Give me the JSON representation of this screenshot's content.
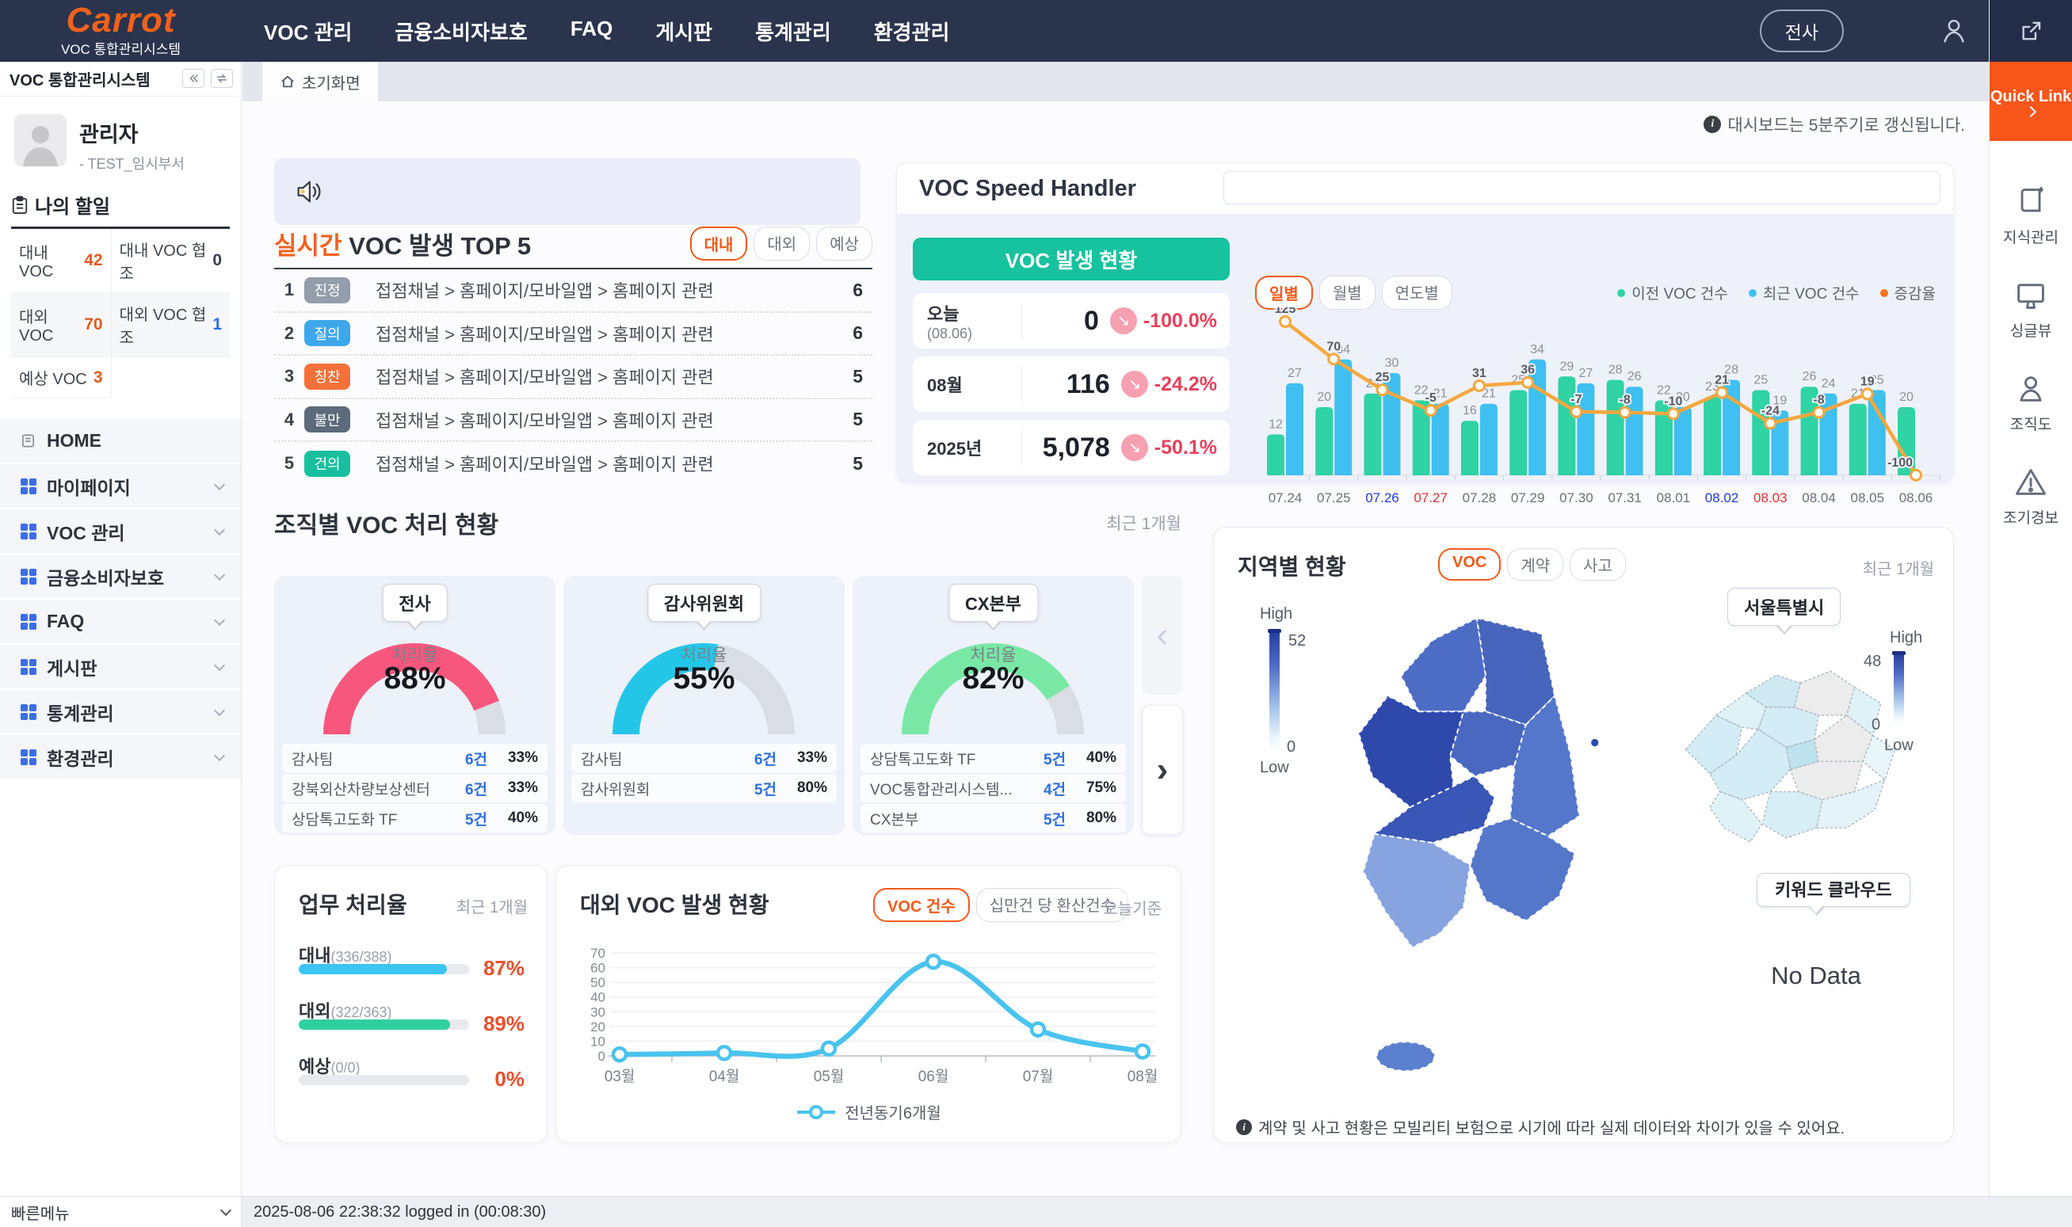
{
  "navbar": {
    "logo": "Carrot",
    "logo_sub": "VOC 통합관리시스템",
    "menu": [
      "VOC 관리",
      "금융소비자보호",
      "FAQ",
      "게시판",
      "통계관리",
      "환경관리"
    ],
    "scope_button": "전사"
  },
  "rail": {
    "quick_link": "Quick Link",
    "items": [
      {
        "label": "지식관리",
        "icon": "book-icon"
      },
      {
        "label": "싱글뷰",
        "icon": "monitor-icon"
      },
      {
        "label": "조직도",
        "icon": "org-person-icon"
      },
      {
        "label": "조기경보",
        "icon": "alert-triangle-icon"
      }
    ]
  },
  "sidebar": {
    "title": "VOC 통합관리시스템",
    "user": {
      "name": "관리자",
      "dept": "- TEST_임시부서"
    },
    "todo": {
      "title": "나의 할일",
      "items": [
        {
          "label": "대내 VOC",
          "value": "42",
          "color": "#e25b22"
        },
        {
          "label": "대내 VOC 협조",
          "value": "0",
          "color": "#374151"
        },
        {
          "label": "대외 VOC",
          "value": "70",
          "color": "#e25b22"
        },
        {
          "label": "대외 VOC 협조",
          "value": "1",
          "color": "#2d6fdd"
        },
        {
          "label": "예상 VOC",
          "value": "3",
          "color": "#e25b22"
        }
      ]
    },
    "home_label": "HOME",
    "menu": [
      "마이페이지",
      "VOC 관리",
      "금융소비자보호",
      "FAQ",
      "게시판",
      "통계관리",
      "환경관리"
    ]
  },
  "main": {
    "tab": "초기화면",
    "refresh_note": "대시보드는 5분주기로 갱신됩니다.",
    "top5": {
      "title_highlight": "실시간",
      "title_rest": " VOC 발생 TOP 5",
      "filters": [
        {
          "label": "대내",
          "active": true
        },
        {
          "label": "대외",
          "active": false
        },
        {
          "label": "예상",
          "active": false
        }
      ],
      "rows": [
        {
          "rank": "1",
          "badge": "진정",
          "badge_color": "#939dab",
          "text": "접점채널 > 홈페이지/모바일앱 > 홈페이지 관련",
          "count": "6"
        },
        {
          "rank": "2",
          "badge": "질의",
          "badge_color": "#3ea7ea",
          "text": "접점채널 > 홈페이지/모바일앱 > 홈페이지 관련",
          "count": "6"
        },
        {
          "rank": "3",
          "badge": "칭찬",
          "badge_color": "#f4713a",
          "text": "접점채널 > 홈페이지/모바일앱 > 홈페이지 관련",
          "count": "5"
        },
        {
          "rank": "4",
          "badge": "불만",
          "badge_color": "#5b6b7b",
          "text": "접점채널 > 홈페이지/모바일앱 > 홈페이지 관련",
          "count": "5"
        },
        {
          "rank": "5",
          "badge": "건의",
          "badge_color": "#17bf9e",
          "text": "접점채널 > 홈페이지/모바일앱 > 홈페이지 관련",
          "count": "5"
        }
      ]
    },
    "speed": {
      "title": "VOC Speed Handler",
      "status_button": "VOC 발생 현황",
      "stats": [
        {
          "label": "오늘",
          "sublabel": "(08.06)",
          "value": "0",
          "delta": "-100.0%"
        },
        {
          "label": "08월",
          "sublabel": "",
          "value": "116",
          "delta": "-24.2%"
        },
        {
          "label": "2025년",
          "sublabel": "",
          "value": "5,078",
          "delta": "-50.1%"
        }
      ],
      "period_buttons": [
        {
          "label": "일별",
          "active": true
        },
        {
          "label": "월별",
          "active": false
        },
        {
          "label": "연도별",
          "active": false
        }
      ],
      "legend": [
        {
          "label": "이전 VOC 건수",
          "color": "#2fd3a4"
        },
        {
          "label": "최근 VOC 건수",
          "color": "#3fc0f0"
        },
        {
          "label": "증감율",
          "color": "#f4731c"
        }
      ]
    },
    "org": {
      "title": "조직별 VOC 처리 현황",
      "period": "최근 1개월",
      "gauge_label": "처리율",
      "cards": [
        {
          "name": "전사",
          "rate": 88,
          "rate_label": "88%",
          "color": "#f8577d",
          "rows": [
            {
              "name": "감사팀",
              "count": "6건",
              "pct": "33%"
            },
            {
              "name": "강북외산차량보상센터",
              "count": "6건",
              "pct": "33%"
            },
            {
              "name": "상담톡고도화 TF",
              "count": "5건",
              "pct": "40%"
            }
          ]
        },
        {
          "name": "감사위원회",
          "rate": 55,
          "rate_label": "55%",
          "color": "#24c6e8",
          "rows": [
            {
              "name": "감사팀",
              "count": "6건",
              "pct": "33%"
            },
            {
              "name": "감사위원회",
              "count": "5건",
              "pct": "80%"
            }
          ]
        },
        {
          "name": "CX본부",
          "rate": 82,
          "rate_label": "82%",
          "color": "#79e8a5",
          "rows": [
            {
              "name": "상담톡고도화 TF",
              "count": "5건",
              "pct": "40%"
            },
            {
              "name": "VOC통합관리시스템...",
              "count": "4건",
              "pct": "75%"
            },
            {
              "name": "CX본부",
              "count": "5건",
              "pct": "80%"
            }
          ]
        }
      ]
    },
    "work": {
      "title": "업무 처리율",
      "period": "최근 1개월",
      "bars": [
        {
          "label": "대내",
          "detail": "(336/388)",
          "pct": 87,
          "pct_label": "87%",
          "color": "#3cc4f2"
        },
        {
          "label": "대외",
          "detail": "(322/363)",
          "pct": 89,
          "pct_label": "89%",
          "color": "#2fd0a0"
        },
        {
          "label": "예상",
          "detail": "(0/0)",
          "pct": 0,
          "pct_label": "0%",
          "color": "#3cc4f2"
        }
      ]
    },
    "trend": {
      "title": "대외 VOC 발생 현황",
      "filters": [
        {
          "label": "VOC 건수",
          "active": true
        },
        {
          "label": "십만건 당 환산건수",
          "active": false
        }
      ],
      "asof": "오늘기준",
      "legend": "전년동기6개월"
    },
    "region": {
      "title": "지역별 현황",
      "filters": [
        {
          "label": "VOC",
          "active": true
        },
        {
          "label": "계약",
          "active": false
        },
        {
          "label": "사고",
          "active": false
        }
      ],
      "period": "최근 1개월",
      "korea_legend": {
        "high": "High",
        "low": "Low",
        "max": "52",
        "min": "0"
      },
      "seoul_legend": {
        "high": "High",
        "low": "Low",
        "max": "48",
        "min": "0"
      },
      "seoul_tooltip": "서울특별시",
      "keyword_button": "키워드 클라우드",
      "no_data": "No Data",
      "note": "계약 및 사고 현황은 모빌리티 보험으로 시기에 따라 실제 데이터와 차이가 있을 수 있어요."
    }
  },
  "statusbar": {
    "quick_menu": "빠른메뉴",
    "session": "2025-08-06 22:38:32 logged in  (00:08:30)"
  },
  "chart_data": [
    {
      "type": "bar",
      "title": "VOC 발생 현황 (일별)",
      "categories": [
        "07.24",
        "07.25",
        "07.26",
        "07.27",
        "07.28",
        "07.29",
        "07.30",
        "07.31",
        "08.01",
        "08.02",
        "08.03",
        "08.04",
        "08.05",
        "08.06"
      ],
      "series": [
        {
          "name": "이전 VOC 건수",
          "type": "bar",
          "color": "#2fd3a4",
          "values": [
            12,
            20,
            24,
            22,
            16,
            25,
            29,
            28,
            22,
            23,
            25,
            26,
            21,
            20
          ]
        },
        {
          "name": "최근 VOC 건수",
          "type": "bar",
          "color": "#3fc0f0",
          "values": [
            27,
            34,
            30,
            21,
            21,
            34,
            27,
            26,
            20,
            28,
            19,
            24,
            25,
            0
          ]
        },
        {
          "name": "증감율",
          "type": "line",
          "color": "#f6a73e",
          "values": [
            125,
            70,
            25,
            -5,
            31,
            36,
            -7,
            -8,
            -10,
            21,
            -24,
            -8,
            19,
            -100
          ]
        }
      ],
      "saturday_indexes": [
        2,
        9
      ],
      "sunday_indexes": [
        3,
        10
      ],
      "legend_position": "top-right",
      "grid": false
    },
    {
      "type": "line",
      "title": "대외 VOC 발생 현황",
      "categories": [
        "03월",
        "04월",
        "05월",
        "06월",
        "07월",
        "08월"
      ],
      "series": [
        {
          "name": "전년동기6개월",
          "color": "#49c3ee",
          "values": [
            1,
            2,
            5,
            64,
            18,
            3
          ]
        }
      ],
      "ylim": [
        0,
        70
      ],
      "yticks": [
        0,
        10,
        20,
        30,
        40,
        50,
        60,
        70
      ],
      "grid": true,
      "legend_position": "bottom-center"
    }
  ]
}
